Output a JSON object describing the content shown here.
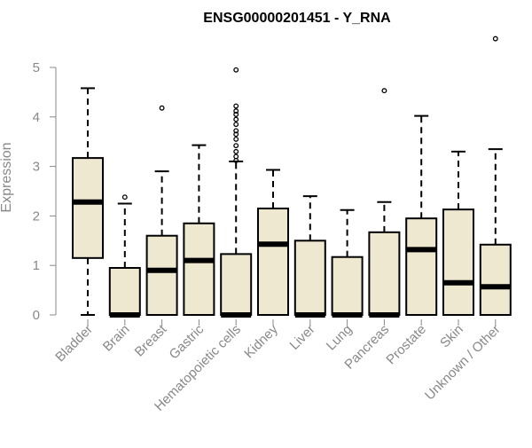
{
  "chart_data": {
    "type": "box",
    "title": "ENSG00000201451 - Y_RNA",
    "xlabel": "",
    "ylabel": "Expression",
    "ylim": [
      0,
      5.6
    ],
    "y_ticks": [
      0,
      1,
      2,
      3,
      4,
      5
    ],
    "grid": false,
    "legend": "none",
    "colors": {
      "box_fill": "#efe8d0",
      "box_stroke": "#000000",
      "axis": "#888888",
      "tick_label": "#888888",
      "title": "#000000"
    },
    "categories": [
      "Bladder",
      "Brain",
      "Breast",
      "Gastric",
      "Hematopoietic cells",
      "Kidney",
      "Liver",
      "Lung",
      "Pancreas",
      "Prostate",
      "Skin",
      "Unknown / Other"
    ],
    "boxes": [
      {
        "label": "Bladder",
        "whisker_low": 0.0,
        "q1": 1.15,
        "median": 2.28,
        "q3": 3.17,
        "whisker_high": 4.58,
        "outliers": []
      },
      {
        "label": "Brain",
        "whisker_low": 0.0,
        "q1": 0.0,
        "median": 0.0,
        "q3": 0.95,
        "whisker_high": 2.25,
        "outliers": [
          2.38
        ]
      },
      {
        "label": "Breast",
        "whisker_low": 0.0,
        "q1": 0.0,
        "median": 0.9,
        "q3": 1.6,
        "whisker_high": 2.9,
        "outliers": [
          4.18
        ]
      },
      {
        "label": "Gastric",
        "whisker_low": 0.0,
        "q1": 0.0,
        "median": 1.1,
        "q3": 1.85,
        "whisker_high": 3.43,
        "outliers": []
      },
      {
        "label": "Hematopoietic cells",
        "whisker_low": 0.0,
        "q1": 0.0,
        "median": 0.0,
        "q3": 1.23,
        "whisker_high": 3.1,
        "outliers": [
          3.12,
          3.2,
          3.3,
          3.42,
          3.55,
          3.65,
          3.72,
          3.85,
          3.95,
          4.05,
          4.12,
          4.22,
          4.95
        ]
      },
      {
        "label": "Kidney",
        "whisker_low": 0.0,
        "q1": 0.0,
        "median": 1.43,
        "q3": 2.15,
        "whisker_high": 2.93,
        "outliers": []
      },
      {
        "label": "Liver",
        "whisker_low": 0.0,
        "q1": 0.0,
        "median": 0.0,
        "q3": 1.5,
        "whisker_high": 2.4,
        "outliers": []
      },
      {
        "label": "Lung",
        "whisker_low": 0.0,
        "q1": 0.0,
        "median": 0.0,
        "q3": 1.17,
        "whisker_high": 2.12,
        "outliers": []
      },
      {
        "label": "Pancreas",
        "whisker_low": 0.0,
        "q1": 0.0,
        "median": 0.0,
        "q3": 1.67,
        "whisker_high": 2.28,
        "outliers": [
          4.53
        ]
      },
      {
        "label": "Prostate",
        "whisker_low": 0.0,
        "q1": 0.0,
        "median": 1.32,
        "q3": 1.95,
        "whisker_high": 4.02,
        "outliers": []
      },
      {
        "label": "Skin",
        "whisker_low": 0.0,
        "q1": 0.0,
        "median": 0.65,
        "q3": 2.13,
        "whisker_high": 3.3,
        "outliers": []
      },
      {
        "label": "Unknown / Other",
        "whisker_low": 0.0,
        "q1": 0.0,
        "median": 0.57,
        "q3": 1.42,
        "whisker_high": 3.35,
        "outliers": [
          5.58
        ]
      }
    ]
  }
}
